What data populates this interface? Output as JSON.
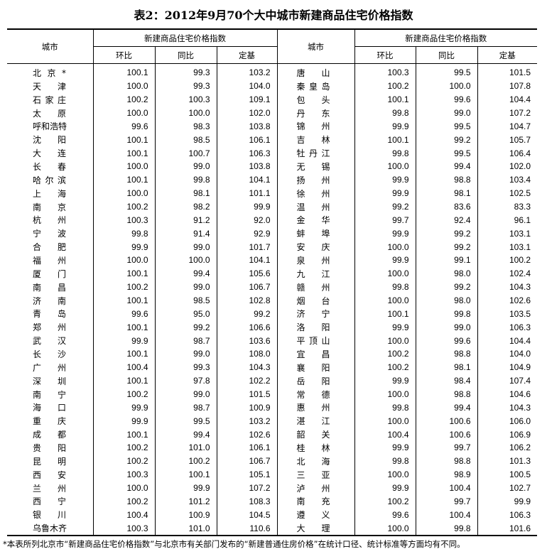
{
  "title": "表2：2012年9月70个大中城市新建商品住宅价格指数",
  "headers": {
    "city": "城市",
    "group": "新建商品住宅价格指数",
    "mom": "环比",
    "yoy": "同比",
    "base": "定基"
  },
  "left": [
    [
      "北京*",
      "100.1",
      "99.3",
      "103.2"
    ],
    [
      "天津",
      "100.0",
      "99.3",
      "104.0"
    ],
    [
      "石家庄",
      "100.2",
      "100.3",
      "109.1"
    ],
    [
      "太原",
      "100.0",
      "100.0",
      "102.0"
    ],
    [
      "呼和浩特",
      "99.6",
      "98.3",
      "103.8"
    ],
    [
      "沈阳",
      "100.1",
      "98.5",
      "106.1"
    ],
    [
      "大连",
      "100.1",
      "100.7",
      "106.3"
    ],
    [
      "长春",
      "100.0",
      "99.0",
      "103.8"
    ],
    [
      "哈尔滨",
      "100.1",
      "99.8",
      "104.1"
    ],
    [
      "上海",
      "100.0",
      "98.1",
      "101.1"
    ],
    [
      "南京",
      "100.2",
      "98.2",
      "99.9"
    ],
    [
      "杭州",
      "100.3",
      "91.2",
      "92.0"
    ],
    [
      "宁波",
      "99.8",
      "91.4",
      "92.9"
    ],
    [
      "合肥",
      "99.9",
      "99.0",
      "101.7"
    ],
    [
      "福州",
      "100.0",
      "100.0",
      "104.1"
    ],
    [
      "厦门",
      "100.1",
      "99.4",
      "105.6"
    ],
    [
      "南昌",
      "100.2",
      "99.0",
      "106.7"
    ],
    [
      "济南",
      "100.1",
      "98.5",
      "102.8"
    ],
    [
      "青岛",
      "99.6",
      "95.0",
      "99.2"
    ],
    [
      "郑州",
      "100.1",
      "99.2",
      "106.6"
    ],
    [
      "武汉",
      "99.9",
      "98.7",
      "103.6"
    ],
    [
      "长沙",
      "100.1",
      "99.0",
      "108.0"
    ],
    [
      "广州",
      "100.4",
      "99.3",
      "104.3"
    ],
    [
      "深圳",
      "100.1",
      "97.8",
      "102.2"
    ],
    [
      "南宁",
      "100.2",
      "99.0",
      "101.5"
    ],
    [
      "海口",
      "99.9",
      "98.7",
      "100.9"
    ],
    [
      "重庆",
      "99.9",
      "99.5",
      "103.2"
    ],
    [
      "成都",
      "100.1",
      "99.4",
      "102.6"
    ],
    [
      "贵阳",
      "100.2",
      "101.0",
      "106.1"
    ],
    [
      "昆明",
      "100.2",
      "100.2",
      "106.7"
    ],
    [
      "西安",
      "100.3",
      "100.1",
      "105.1"
    ],
    [
      "兰州",
      "100.0",
      "99.9",
      "107.2"
    ],
    [
      "西宁",
      "100.2",
      "101.2",
      "108.3"
    ],
    [
      "银川",
      "100.4",
      "100.9",
      "104.5"
    ],
    [
      "乌鲁木齐",
      "100.3",
      "101.0",
      "110.6"
    ]
  ],
  "right": [
    [
      "唐山",
      "100.3",
      "99.5",
      "101.5"
    ],
    [
      "秦皇岛",
      "100.2",
      "100.0",
      "107.8"
    ],
    [
      "包头",
      "100.1",
      "99.6",
      "104.4"
    ],
    [
      "丹东",
      "99.8",
      "99.0",
      "107.2"
    ],
    [
      "锦州",
      "99.9",
      "99.5",
      "104.7"
    ],
    [
      "吉林",
      "100.1",
      "99.2",
      "105.7"
    ],
    [
      "牡丹江",
      "99.8",
      "99.5",
      "106.4"
    ],
    [
      "无锡",
      "100.0",
      "99.4",
      "102.0"
    ],
    [
      "扬州",
      "99.9",
      "98.8",
      "103.4"
    ],
    [
      "徐州",
      "99.9",
      "98.1",
      "102.5"
    ],
    [
      "温州",
      "99.2",
      "83.6",
      "83.3"
    ],
    [
      "金华",
      "99.7",
      "92.4",
      "96.1"
    ],
    [
      "蚌埠",
      "99.9",
      "99.2",
      "103.1"
    ],
    [
      "安庆",
      "100.0",
      "99.2",
      "103.1"
    ],
    [
      "泉州",
      "99.9",
      "99.1",
      "100.2"
    ],
    [
      "九江",
      "100.0",
      "98.0",
      "102.4"
    ],
    [
      "赣州",
      "99.8",
      "99.2",
      "104.3"
    ],
    [
      "烟台",
      "100.0",
      "98.0",
      "102.6"
    ],
    [
      "济宁",
      "100.1",
      "99.8",
      "103.5"
    ],
    [
      "洛阳",
      "99.9",
      "99.0",
      "106.3"
    ],
    [
      "平顶山",
      "100.0",
      "99.6",
      "104.4"
    ],
    [
      "宜昌",
      "100.2",
      "98.8",
      "104.0"
    ],
    [
      "襄阳",
      "100.2",
      "98.1",
      "104.9"
    ],
    [
      "岳阳",
      "99.9",
      "98.4",
      "107.4"
    ],
    [
      "常德",
      "100.0",
      "98.8",
      "104.6"
    ],
    [
      "惠州",
      "99.8",
      "99.4",
      "104.3"
    ],
    [
      "湛江",
      "100.0",
      "100.6",
      "106.0"
    ],
    [
      "韶关",
      "100.4",
      "100.6",
      "106.9"
    ],
    [
      "桂林",
      "99.9",
      "99.7",
      "106.2"
    ],
    [
      "北海",
      "99.8",
      "98.8",
      "101.3"
    ],
    [
      "三亚",
      "100.0",
      "98.9",
      "100.5"
    ],
    [
      "泸州",
      "99.9",
      "100.4",
      "102.7"
    ],
    [
      "南充",
      "100.2",
      "99.7",
      "99.9"
    ],
    [
      "遵义",
      "99.6",
      "100.4",
      "106.3"
    ],
    [
      "大理",
      "100.0",
      "99.8",
      "101.6"
    ]
  ],
  "footnote": "*本表所列北京市“新建商品住宅价格指数”与北京市有关部门发布的“新建普通住房价格”在统计口径、统计标准等方面均有不同。"
}
